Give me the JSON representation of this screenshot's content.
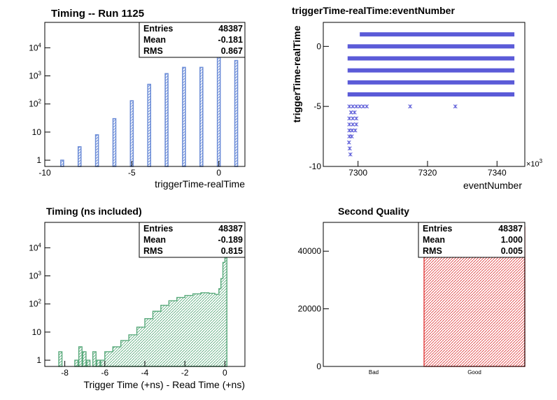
{
  "chart_data": [
    {
      "type": "bar",
      "title": "Timing -- Run 1125",
      "xlabel": "triggerTime-realTime",
      "ylabel": "",
      "xlim": [
        -10,
        1.5
      ],
      "y_scale": "log",
      "ylim": [
        0.6,
        80000
      ],
      "xticks": [
        {
          "v": -10,
          "label": "-10"
        },
        {
          "v": -5,
          "label": "-5"
        },
        {
          "v": 0,
          "label": "0"
        }
      ],
      "yticks": [
        {
          "v": 1,
          "label": "1"
        },
        {
          "v": 10,
          "label": "10"
        },
        {
          "v": 100,
          "label": "10^2"
        },
        {
          "v": 1000,
          "label": "10^3"
        },
        {
          "v": 10000,
          "label": "10^4"
        }
      ],
      "bin_width": 0.1,
      "bars": [
        {
          "x": -9,
          "y": 1
        },
        {
          "x": -8,
          "y": 3
        },
        {
          "x": -7,
          "y": 8
        },
        {
          "x": -6,
          "y": 30
        },
        {
          "x": -5,
          "y": 130
        },
        {
          "x": -4,
          "y": 500
        },
        {
          "x": -3,
          "y": 1200
        },
        {
          "x": -2,
          "y": 2000
        },
        {
          "x": -1,
          "y": 2000
        },
        {
          "x": 0,
          "y": 40000
        },
        {
          "x": 1,
          "y": 3500
        }
      ],
      "stats": {
        "entries_label": "Entries",
        "entries": "48387",
        "mean_label": "Mean",
        "mean": "-0.181",
        "rms_label": "RMS",
        "rms": "0.867"
      },
      "color": "#6f8fd8"
    },
    {
      "type": "scatter",
      "title": "triggerTime-realTime:eventNumber",
      "xlabel": "eventNumber",
      "ylabel": "triggerTime-realTime",
      "xlim": [
        7290,
        7348
      ],
      "ylim": [
        -10,
        2
      ],
      "x_multiplier": "×10^3",
      "xticks": [
        {
          "v": 7300,
          "label": "7300"
        },
        {
          "v": 7320,
          "label": "7320"
        },
        {
          "v": 7340,
          "label": "7340"
        }
      ],
      "yticks": [
        {
          "v": -10,
          "label": "-10"
        },
        {
          "v": -5,
          "label": "-5"
        },
        {
          "v": 0,
          "label": "0"
        }
      ],
      "bands": [
        {
          "y": 1,
          "x_start": 7300.5,
          "x_end": 7345
        },
        {
          "y": 0,
          "x_start": 7297,
          "x_end": 7345
        },
        {
          "y": -1,
          "x_start": 7297,
          "x_end": 7345
        },
        {
          "y": -2,
          "x_start": 7297,
          "x_end": 7345
        },
        {
          "y": -3,
          "x_start": 7297,
          "x_end": 7345
        },
        {
          "y": -4,
          "x_start": 7297,
          "x_end": 7345
        }
      ],
      "points": [
        {
          "x": 7297.5,
          "y": -5
        },
        {
          "x": 7298.5,
          "y": -5
        },
        {
          "x": 7299.5,
          "y": -5
        },
        {
          "x": 7300.5,
          "y": -5
        },
        {
          "x": 7301.5,
          "y": -5
        },
        {
          "x": 7302.5,
          "y": -5
        },
        {
          "x": 7315,
          "y": -5
        },
        {
          "x": 7328,
          "y": -5
        },
        {
          "x": 7298,
          "y": -5.5
        },
        {
          "x": 7299,
          "y": -5.5
        },
        {
          "x": 7297.5,
          "y": -6
        },
        {
          "x": 7298.5,
          "y": -6
        },
        {
          "x": 7299.5,
          "y": -6
        },
        {
          "x": 7297.5,
          "y": -6.5
        },
        {
          "x": 7298.5,
          "y": -6.5
        },
        {
          "x": 7299.5,
          "y": -6.5
        },
        {
          "x": 7297.5,
          "y": -7
        },
        {
          "x": 7298.3,
          "y": -7
        },
        {
          "x": 7299.2,
          "y": -7
        },
        {
          "x": 7297.5,
          "y": -7.5
        },
        {
          "x": 7298.2,
          "y": -7.5
        },
        {
          "x": 7297.4,
          "y": -8
        },
        {
          "x": 7297.6,
          "y": -8.5
        },
        {
          "x": 7297.8,
          "y": -9
        }
      ],
      "color": "#5b5bd8"
    },
    {
      "type": "area",
      "title": "Timing (ns included)",
      "xlabel": "Trigger Time (+ns) - Read Time (+ns)",
      "ylabel": "",
      "xlim": [
        -9,
        1
      ],
      "y_scale": "log",
      "ylim": [
        0.6,
        80000
      ],
      "xticks": [
        {
          "v": -8,
          "label": "-8"
        },
        {
          "v": -6,
          "label": "-6"
        },
        {
          "v": -4,
          "label": "-4"
        },
        {
          "v": -2,
          "label": "-2"
        },
        {
          "v": 0,
          "label": "0"
        }
      ],
      "yticks": [
        {
          "v": 1,
          "label": "1"
        },
        {
          "v": 10,
          "label": "10"
        },
        {
          "v": 100,
          "label": "10^2"
        },
        {
          "v": 1000,
          "label": "10^3"
        },
        {
          "v": 10000,
          "label": "10^4"
        }
      ],
      "bin_width": 0.1,
      "profile": [
        {
          "x": -6.2,
          "y": 1
        },
        {
          "x": -6.0,
          "y": 2
        },
        {
          "x": -5.6,
          "y": 3
        },
        {
          "x": -5.2,
          "y": 5
        },
        {
          "x": -4.8,
          "y": 8
        },
        {
          "x": -4.4,
          "y": 15
        },
        {
          "x": -4.0,
          "y": 30
        },
        {
          "x": -3.6,
          "y": 55
        },
        {
          "x": -3.2,
          "y": 90
        },
        {
          "x": -2.8,
          "y": 130
        },
        {
          "x": -2.4,
          "y": 170
        },
        {
          "x": -2.0,
          "y": 200
        },
        {
          "x": -1.6,
          "y": 230
        },
        {
          "x": -1.2,
          "y": 250
        },
        {
          "x": -0.8,
          "y": 240
        },
        {
          "x": -0.5,
          "y": 220
        },
        {
          "x": -0.3,
          "y": 350
        },
        {
          "x": -0.2,
          "y": 800
        },
        {
          "x": -0.1,
          "y": 3000
        },
        {
          "x": 0.0,
          "y": 40000
        }
      ],
      "sparse": [
        {
          "x": -8.3,
          "y": 2
        },
        {
          "x": -7.5,
          "y": 1
        },
        {
          "x": -7.3,
          "y": 3
        },
        {
          "x": -7.1,
          "y": 2
        },
        {
          "x": -6.9,
          "y": 1
        },
        {
          "x": -6.6,
          "y": 2
        },
        {
          "x": -6.4,
          "y": 1
        }
      ],
      "stats": {
        "entries_label": "Entries",
        "entries": "48387",
        "mean_label": "Mean",
        "mean": "-0.189",
        "rms_label": "RMS",
        "rms": "0.815"
      },
      "color": "#5aaa7c"
    },
    {
      "type": "bar",
      "title": "Second Quality",
      "xlabel": "",
      "ylabel": "",
      "categories": [
        "Bad",
        "Good"
      ],
      "values": [
        0,
        48387
      ],
      "ylim": [
        0,
        50000
      ],
      "yticks": [
        {
          "v": 0,
          "label": "0"
        },
        {
          "v": 20000,
          "label": "20000"
        },
        {
          "v": 40000,
          "label": "40000"
        }
      ],
      "stats": {
        "entries_label": "Entries",
        "entries": "48387",
        "mean_label": "Mean",
        "mean": "1.000",
        "rms_label": "RMS",
        "rms": "0.005"
      },
      "color": "#e04040"
    }
  ]
}
